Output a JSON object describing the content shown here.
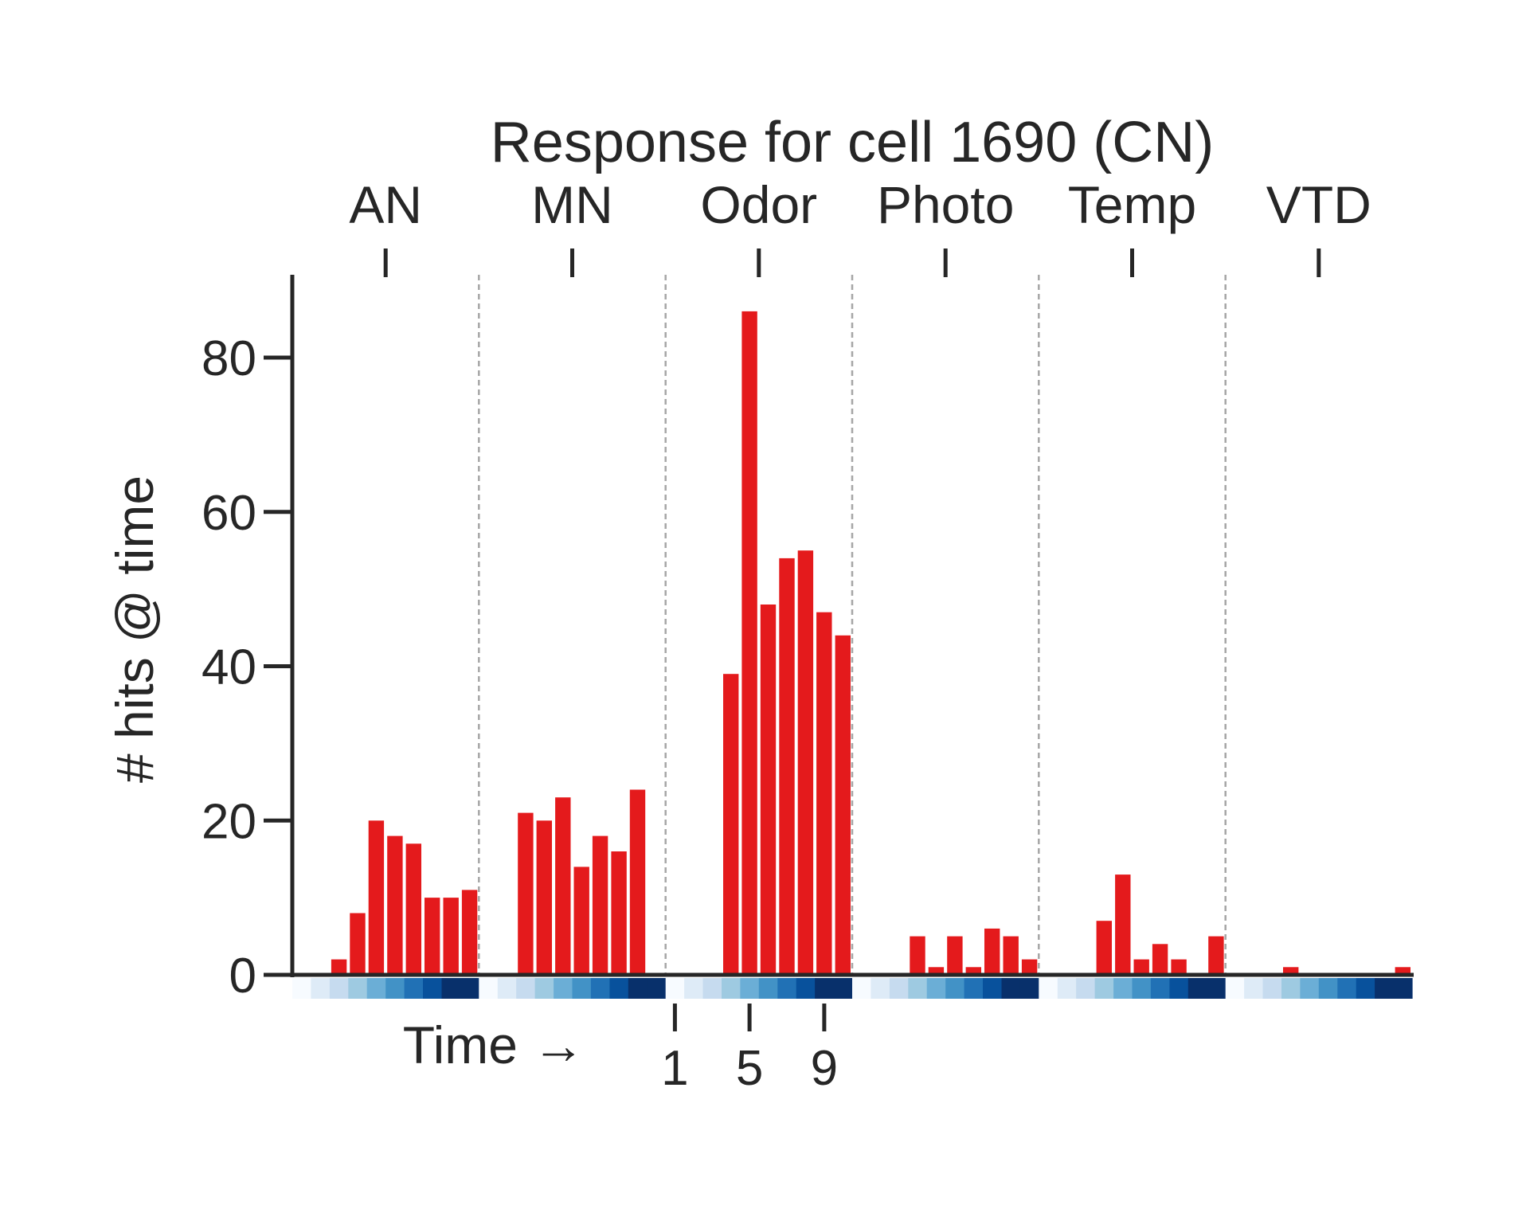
{
  "chart_data": {
    "type": "bar",
    "title": "Response for cell 1690 (CN)",
    "ylabel": "# hits @ time",
    "xlabel": "Time →",
    "ylim": [
      0,
      90
    ],
    "yticks": [
      0,
      20,
      40,
      60,
      80
    ],
    "time_tick_labels": [
      "1",
      "5",
      "9"
    ],
    "time_tick_positions": [
      1,
      5,
      9
    ],
    "time_points": [
      1,
      2,
      3,
      4,
      5,
      6,
      7,
      8,
      9,
      10
    ],
    "bar_color": "#e41a1c",
    "grid": false,
    "groups": [
      {
        "name": "AN",
        "values": [
          0,
          0,
          2,
          8,
          20,
          18,
          17,
          10,
          10,
          11
        ]
      },
      {
        "name": "MN",
        "values": [
          0,
          0,
          21,
          20,
          23,
          14,
          18,
          16,
          24,
          0
        ]
      },
      {
        "name": "Odor",
        "values": [
          0,
          0,
          0,
          39,
          86,
          48,
          54,
          55,
          47,
          44
        ]
      },
      {
        "name": "Photo",
        "values": [
          0,
          0,
          0,
          5,
          1,
          5,
          1,
          6,
          5,
          2
        ]
      },
      {
        "name": "Temp",
        "values": [
          0,
          0,
          0,
          7,
          13,
          2,
          4,
          2,
          0,
          5
        ]
      },
      {
        "name": "VTD",
        "values": [
          0,
          0,
          0,
          1,
          0,
          0,
          0,
          0,
          0,
          1
        ]
      }
    ],
    "time_colormap": [
      "#f7fbff",
      "#deebf7",
      "#c6dbef",
      "#9ecae1",
      "#6baed6",
      "#4292c6",
      "#2171b5",
      "#08519c",
      "#08306b",
      "#08306b"
    ]
  }
}
